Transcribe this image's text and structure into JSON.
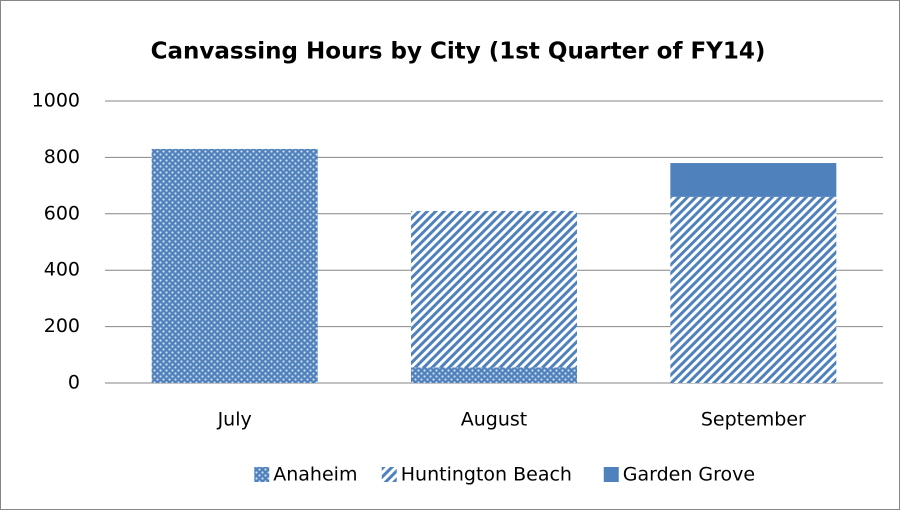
{
  "chart_data": {
    "type": "stacked_bar",
    "title": "Canvassing Hours by City (1st Quarter of FY14)",
    "categories": [
      "July",
      "August",
      "September"
    ],
    "series": [
      {
        "name": "Anaheim",
        "color": "#4f81bd",
        "pattern": "dots",
        "values": [
          830,
          55,
          0
        ]
      },
      {
        "name": "Huntington Beach",
        "color": "#4f81bd",
        "pattern": "stripes",
        "values": [
          0,
          555,
          660
        ]
      },
      {
        "name": "Garden Grove",
        "color": "#4f81bd",
        "pattern": "solid",
        "values": [
          0,
          0,
          120
        ]
      }
    ],
    "ylim": [
      0,
      1000
    ],
    "yticks": [
      0,
      200,
      400,
      600,
      800,
      1000
    ],
    "grid": true,
    "legend": "bottom"
  }
}
